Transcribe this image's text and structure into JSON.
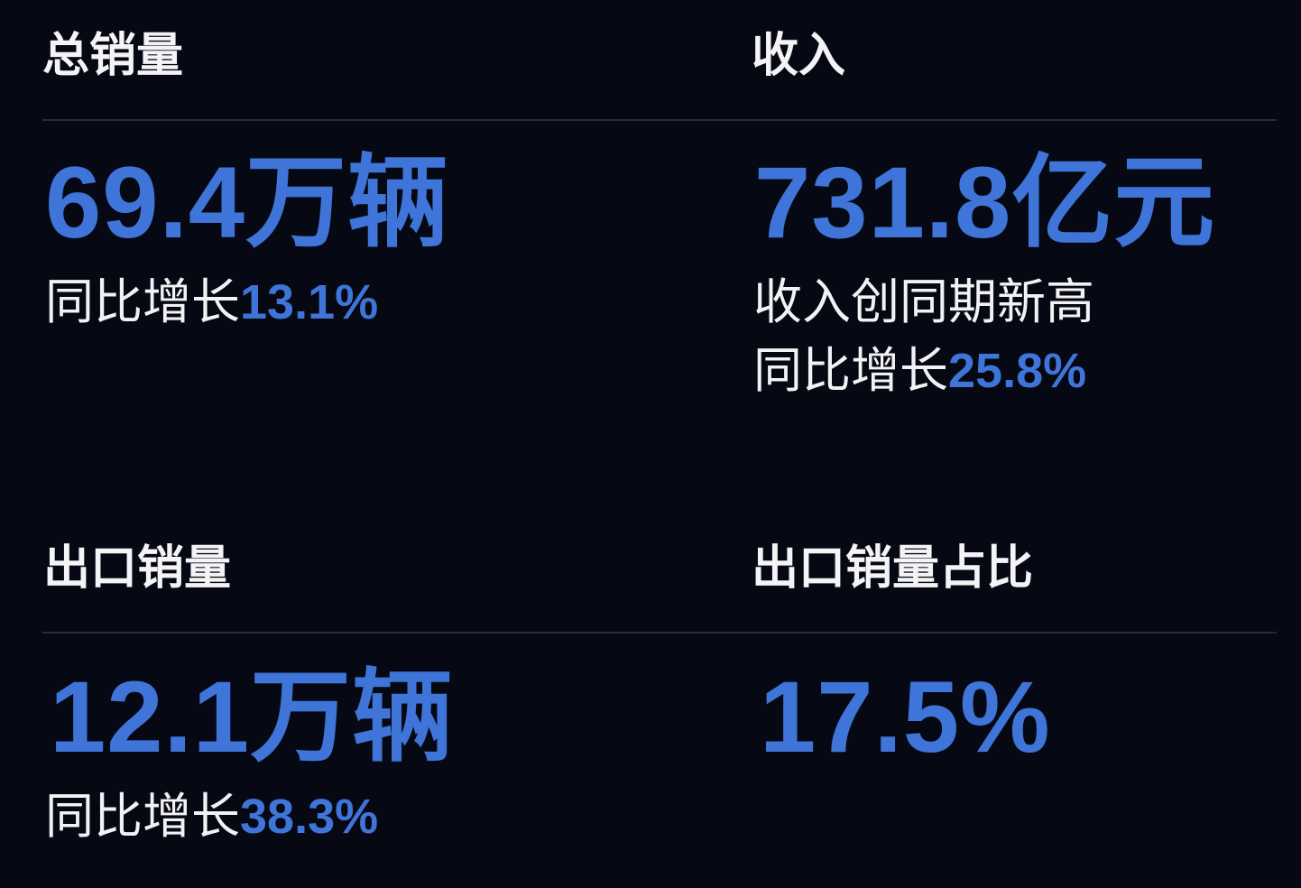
{
  "colors": {
    "background": "#060914",
    "accent": "#3f74d8",
    "text": "#f2f2f4"
  },
  "cards": [
    {
      "title": "总销量",
      "value": "69.4万辆",
      "notes": [],
      "growth_label": "同比增长",
      "growth_value": "13.1%"
    },
    {
      "title": "收入",
      "value": "731.8亿元",
      "notes": [
        "收入创同期新高"
      ],
      "growth_label": "同比增长",
      "growth_value": "25.8%"
    },
    {
      "title": "出口销量",
      "value": "12.1万辆",
      "notes": [],
      "growth_label": "同比增长",
      "growth_value": "38.3%"
    },
    {
      "title": "出口销量占比",
      "value": "17.5%",
      "notes": [],
      "growth_label": null,
      "growth_value": null
    }
  ]
}
